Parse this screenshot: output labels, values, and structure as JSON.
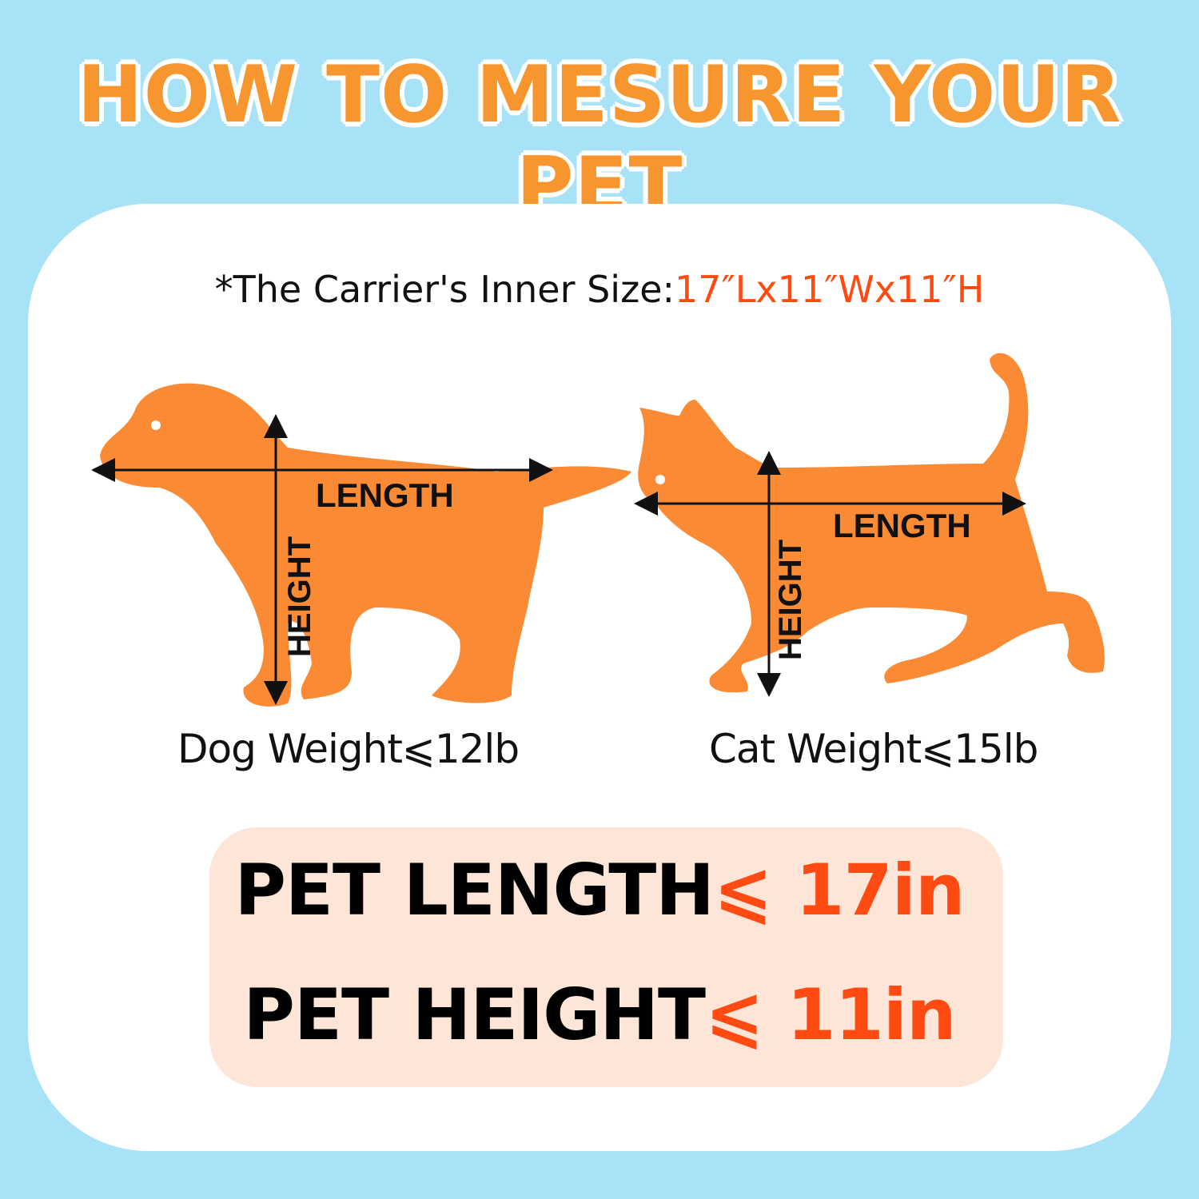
{
  "title": "HOW TO MESURE YOUR PET",
  "subtitle": {
    "prefix": "*The Carrier's Inner Size:",
    "size": "17″Lx11″Wx11″H"
  },
  "dog": {
    "length_label": "LENGTH",
    "height_label": "HEIGHT",
    "weight": "Dog Weight⩽12lb"
  },
  "cat": {
    "length_label": "LENGTH",
    "height_label": "HEIGHT",
    "weight": "Cat Weight⩽15lb"
  },
  "limits": {
    "length": {
      "label": "PET LENGTH",
      "value": "⩽ 17in"
    },
    "height": {
      "label": "PET HEIGHT",
      "value": "⩽ 11in"
    }
  },
  "colors": {
    "background": "#a8e2f7",
    "title": "#f7962e",
    "silhouette": "#fb8a35",
    "accent": "#ff4a12",
    "box": "#fde5d8"
  }
}
